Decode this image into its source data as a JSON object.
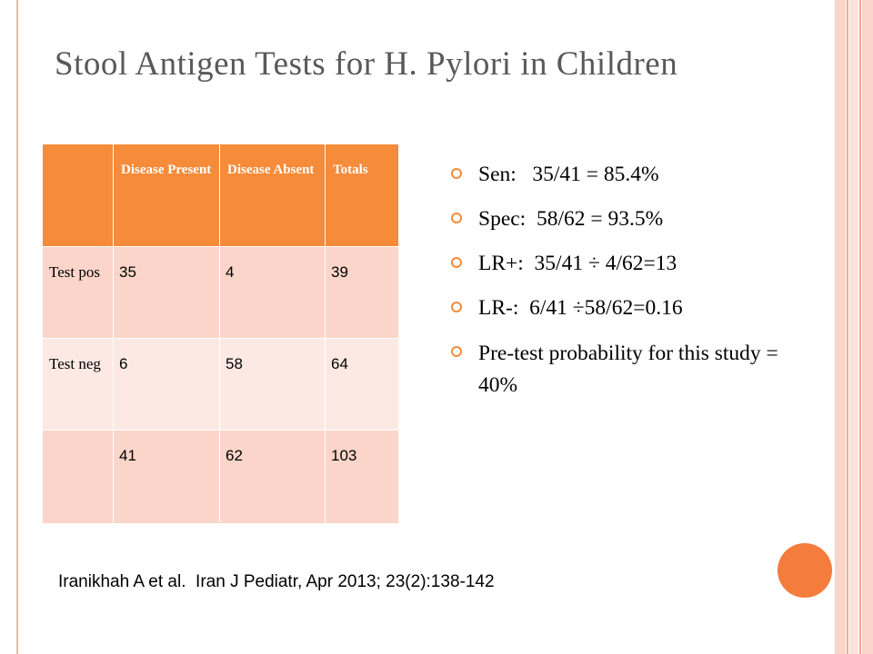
{
  "slide": {
    "title": "Stool Antigen Tests for H. Pylori in Children",
    "accent_color": "#f68b3a",
    "table": {
      "headers": [
        "",
        "Disease Present",
        "Disease Absent",
        "Totals"
      ],
      "rows": [
        {
          "label": "Test pos",
          "values": [
            "35",
            "4",
            "39"
          ]
        },
        {
          "label": "Test neg",
          "values": [
            "6",
            "58",
            "64"
          ]
        },
        {
          "label": "",
          "values": [
            "41",
            "62",
            "103"
          ]
        }
      ]
    },
    "bullets": [
      "Sen:   35/41 = 85.4%",
      "Spec:  58/62 = 93.5%",
      "LR+:  35/41 ÷ 4/62=13",
      "LR-:  6/41 ÷58/62=0.16",
      "Pre-test probability for this study = 40%"
    ],
    "citation": "Iranikhah A et al.  Iran J Pediatr, Apr 2013; 23(2):138-142"
  }
}
